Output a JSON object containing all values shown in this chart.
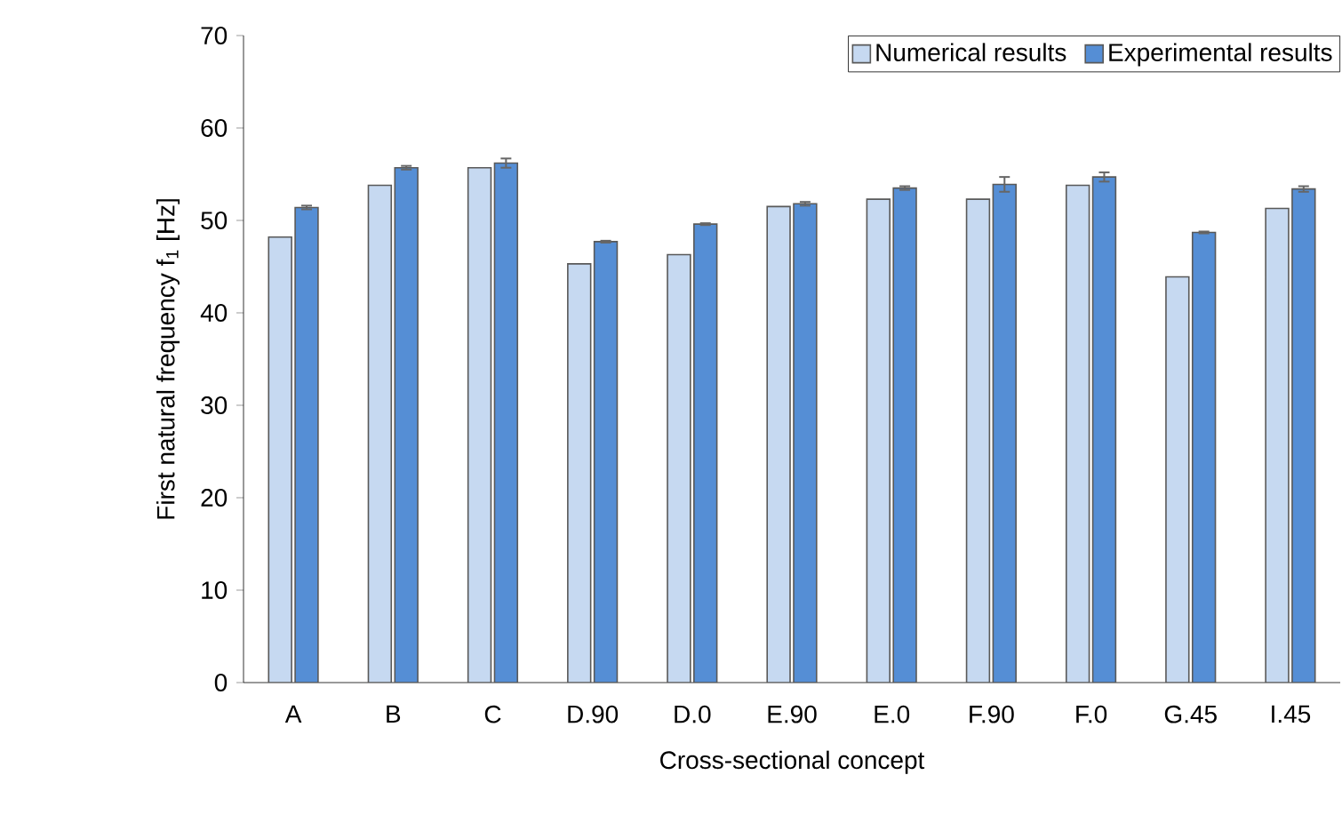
{
  "chart_data": {
    "type": "bar",
    "xlabel": "Cross-sectional concept",
    "ylabel": "First natural frequency f$_{1}$ [Hz]",
    "categories": [
      "A",
      "B",
      "C",
      "D.90",
      "D.0",
      "E.90",
      "E.0",
      "F.90",
      "F.0",
      "G.45",
      "I.45"
    ],
    "series": [
      {
        "name": "Numerical results",
        "color": "#c6d9f1",
        "values": [
          48.2,
          53.8,
          55.7,
          45.3,
          46.3,
          51.5,
          52.3,
          52.3,
          53.8,
          43.9,
          51.3
        ]
      },
      {
        "name": "Experimental results",
        "color": "#558ed5",
        "values": [
          51.4,
          55.7,
          56.2,
          47.7,
          49.6,
          51.8,
          53.5,
          53.9,
          54.7,
          48.7,
          53.4
        ],
        "errors": [
          0.2,
          0.2,
          0.5,
          0.1,
          0.1,
          0.2,
          0.2,
          0.8,
          0.5,
          0.1,
          0.3
        ]
      }
    ],
    "ylim": [
      0,
      70
    ],
    "yticks": [
      0,
      10,
      20,
      30,
      40,
      50,
      60,
      70
    ],
    "legend": "top right"
  }
}
